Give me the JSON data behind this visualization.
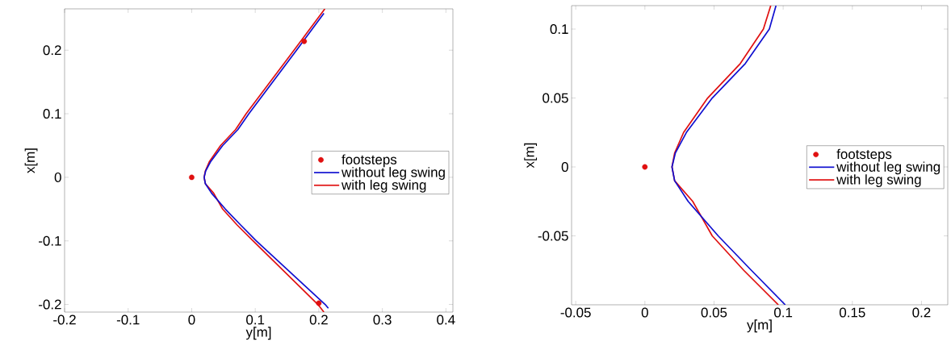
{
  "chart_data": [
    {
      "type": "line",
      "xlabel": "y[m]",
      "ylabel": "x[m]",
      "xlim": [
        -0.2,
        0.411
      ],
      "ylim": [
        -0.212,
        0.265
      ],
      "xticks": [
        -0.2,
        -0.1,
        0,
        0.1,
        0.2,
        0.3,
        0.4
      ],
      "yticks": [
        -0.2,
        -0.1,
        0,
        0.1,
        0.2
      ],
      "grid": false,
      "legend": "right",
      "series": [
        {
          "name": "footsteps",
          "type": "scatter",
          "marker": "circle",
          "color": "#e01010",
          "x": [
            0,
            0.177,
            0.2
          ],
          "values": [
            0,
            0.214,
            -0.198
          ]
        },
        {
          "name": "without leg swing",
          "color": "#1010d0",
          "x": [
            0.215,
            0.21,
            0.1015,
            0.077,
            0.053,
            0.0313,
            0.0215,
            0.0196,
            0.022,
            0.03,
            0.0487,
            0.0726,
            0.09,
            0.165,
            0.208
          ],
          "values": [
            -0.206,
            -0.2,
            -0.1,
            -0.075,
            -0.05,
            -0.025,
            -0.01,
            0,
            0.01,
            0.025,
            0.05,
            0.075,
            0.1,
            0.2,
            0.258
          ]
        },
        {
          "name": "with leg swing",
          "color": "#e01010",
          "x": [
            0.208,
            0.1986,
            0.0965,
            0.0715,
            0.0487,
            0.0346,
            0.0215,
            0.0196,
            0.0215,
            0.028,
            0.0454,
            0.069,
            0.0857,
            0.161,
            0.2095
          ],
          "values": [
            -0.212,
            -0.2,
            -0.1,
            -0.075,
            -0.05,
            -0.025,
            -0.01,
            0,
            0.01,
            0.025,
            0.05,
            0.075,
            0.1,
            0.2,
            0.265
          ]
        }
      ]
    },
    {
      "type": "line",
      "xlabel": "y[m]",
      "ylabel": "x[m]",
      "xlim": [
        -0.053,
        0.219
      ],
      "ylim": [
        -0.1,
        0.117
      ],
      "xticks": [
        -0.05,
        0,
        0.05,
        0.1,
        0.15,
        0.2
      ],
      "yticks": [
        -0.05,
        0,
        0.05,
        0.1
      ],
      "grid": false,
      "legend": "right",
      "series": [
        {
          "name": "footsteps",
          "type": "scatter",
          "marker": "circle",
          "color": "#e01010",
          "x": [
            0
          ],
          "values": [
            0
          ]
        },
        {
          "name": "without leg swing",
          "color": "#1010d0",
          "x": [
            0.1015,
            0.077,
            0.053,
            0.0313,
            0.0215,
            0.0196,
            0.022,
            0.03,
            0.0487,
            0.0726,
            0.09,
            0.0948
          ],
          "values": [
            -0.1,
            -0.075,
            -0.05,
            -0.025,
            -0.01,
            0,
            0.01,
            0.025,
            0.05,
            0.075,
            0.1,
            0.117
          ]
        },
        {
          "name": "with leg swing",
          "color": "#e01010",
          "x": [
            0.0965,
            0.0715,
            0.0487,
            0.0346,
            0.0215,
            0.0196,
            0.0215,
            0.028,
            0.0454,
            0.069,
            0.0857,
            0.091
          ],
          "values": [
            -0.1,
            -0.075,
            -0.05,
            -0.025,
            -0.01,
            0,
            0.01,
            0.025,
            0.05,
            0.075,
            0.1,
            0.117
          ]
        }
      ]
    }
  ]
}
